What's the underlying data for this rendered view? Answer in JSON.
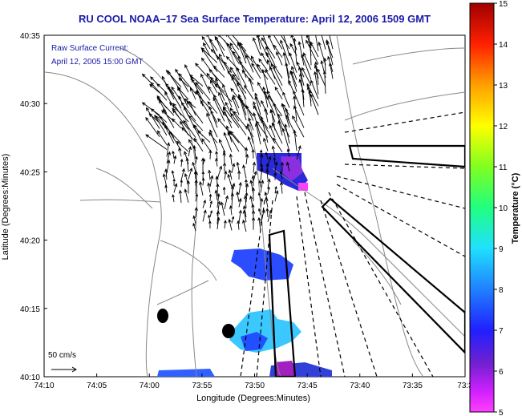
{
  "map": {
    "title": "RU COOL  NOAA–17  Sea Surface Temperature:  April 12, 2006 1509 GMT",
    "legend_title": "Raw Surface Current:",
    "legend_date": "April 12, 2005 15:00 GMT",
    "scale_label": "50 cm/s",
    "x_axis_label": "Longitude (Degrees:Minutes)",
    "y_axis_label": "Latitude (Degrees:Minutes)",
    "x_ticks": [
      "74:10",
      "74:05",
      "74:00",
      "73:55",
      "73:50",
      "73:45",
      "73:40",
      "73:35",
      "73:3"
    ],
    "y_ticks": [
      "40:35",
      "40:30",
      "40:25",
      "40:20",
      "40:15",
      "40:10"
    ],
    "colors": {
      "title": "#1a1aa8",
      "land_contour": "#888888",
      "vectors": "#000000"
    }
  },
  "colorbar": {
    "label": "Temperature (°C)",
    "ticks": [
      "15",
      "14",
      "13",
      "12",
      "11",
      "10",
      "9",
      "8",
      "7",
      "6",
      "5"
    ],
    "min": 5,
    "max": 15
  }
}
